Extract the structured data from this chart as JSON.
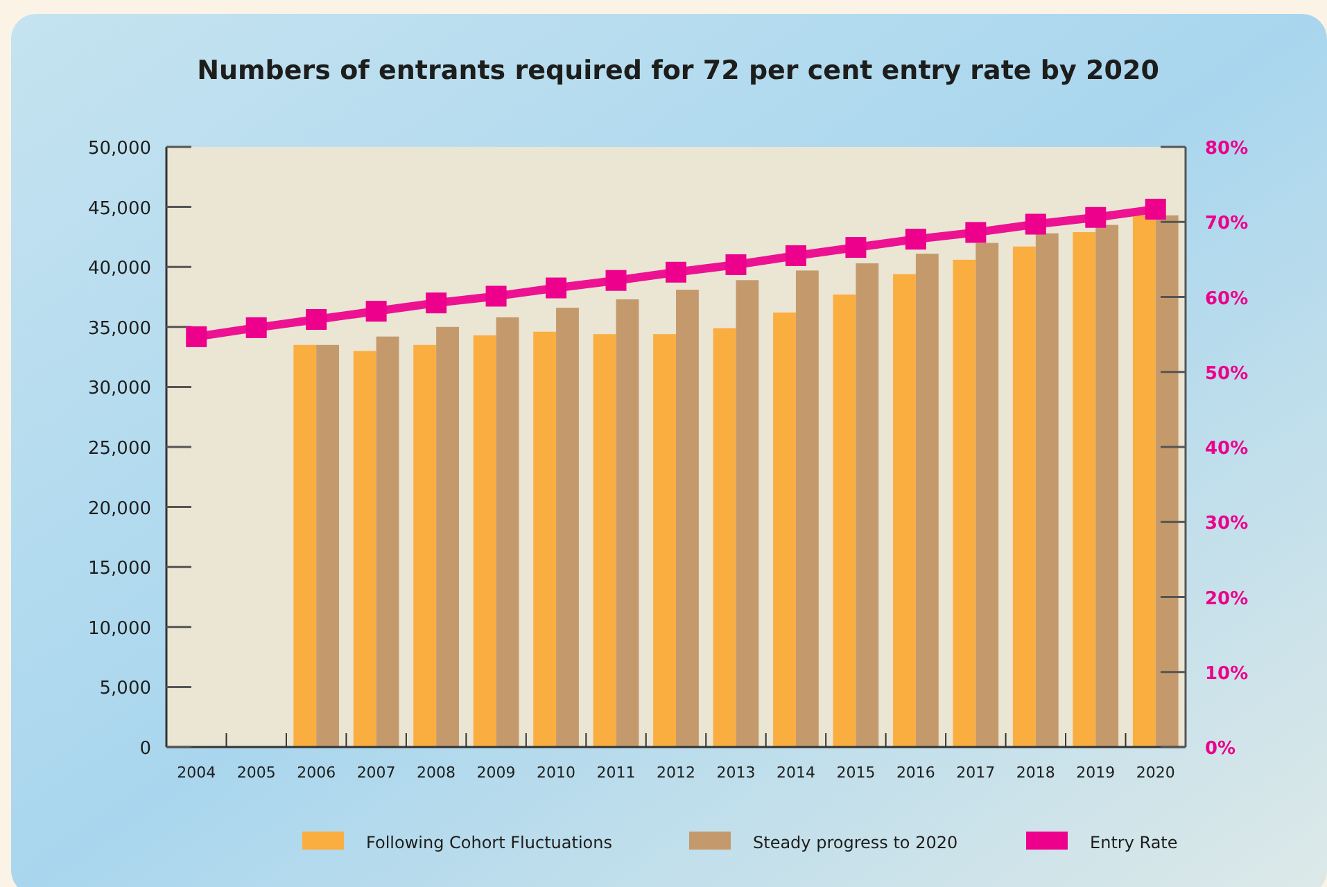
{
  "chart_data": {
    "type": "bar",
    "title": "Numbers of entrants required for 72 per cent entry rate by 2020",
    "categories": [
      "2004",
      "2005",
      "2006",
      "2007",
      "2008",
      "2009",
      "2010",
      "2011",
      "2012",
      "2013",
      "2014",
      "2015",
      "2016",
      "2017",
      "2018",
      "2019",
      "2020"
    ],
    "series": [
      {
        "name": "Following Cohort Fluctuations",
        "color": "#fbae40",
        "values": [
          null,
          null,
          33500,
          33000,
          33500,
          34300,
          34600,
          34400,
          34400,
          34900,
          36200,
          37700,
          39400,
          40600,
          41700,
          42900,
          44300
        ]
      },
      {
        "name": "Steady progress to 2020",
        "color": "#c49a6c",
        "values": [
          null,
          null,
          33500,
          34200,
          35000,
          35800,
          36600,
          37300,
          38100,
          38900,
          39700,
          40300,
          41100,
          42000,
          42800,
          43500,
          44300
        ]
      },
      {
        "name": "Entry Rate",
        "type": "line",
        "axis": "y2",
        "color": "#ec008c",
        "marker": "square",
        "values": [
          54.7,
          55.9,
          57.0,
          58.1,
          59.2,
          60.1,
          61.2,
          62.2,
          63.3,
          64.3,
          65.5,
          66.6,
          67.7,
          68.6,
          69.7,
          70.6,
          71.7
        ]
      }
    ],
    "ylim": [
      0,
      50000
    ],
    "yticks": [
      {
        "value": 0,
        "label": "0"
      },
      {
        "value": 5000,
        "label": "5,000"
      },
      {
        "value": 10000,
        "label": "10,000"
      },
      {
        "value": 15000,
        "label": "15,000"
      },
      {
        "value": 20000,
        "label": "20,000"
      },
      {
        "value": 25000,
        "label": "25,000"
      },
      {
        "value": 30000,
        "label": "30,000"
      },
      {
        "value": 35000,
        "label": "35,000"
      },
      {
        "value": 40000,
        "label": "40,000"
      },
      {
        "value": 45000,
        "label": "45,000"
      },
      {
        "value": 50000,
        "label": "50,000"
      }
    ],
    "y2lim": [
      0,
      80
    ],
    "y2ticks": [
      {
        "value": 0,
        "label": "0%"
      },
      {
        "value": 10,
        "label": "10%"
      },
      {
        "value": 20,
        "label": "20%"
      },
      {
        "value": 30,
        "label": "30%"
      },
      {
        "value": 40,
        "label": "40%"
      },
      {
        "value": 50,
        "label": "50%"
      },
      {
        "value": 60,
        "label": "60%"
      },
      {
        "value": 70,
        "label": "70%"
      },
      {
        "value": 80,
        "label": "80%"
      }
    ],
    "legend": "bottom",
    "grid": false
  }
}
